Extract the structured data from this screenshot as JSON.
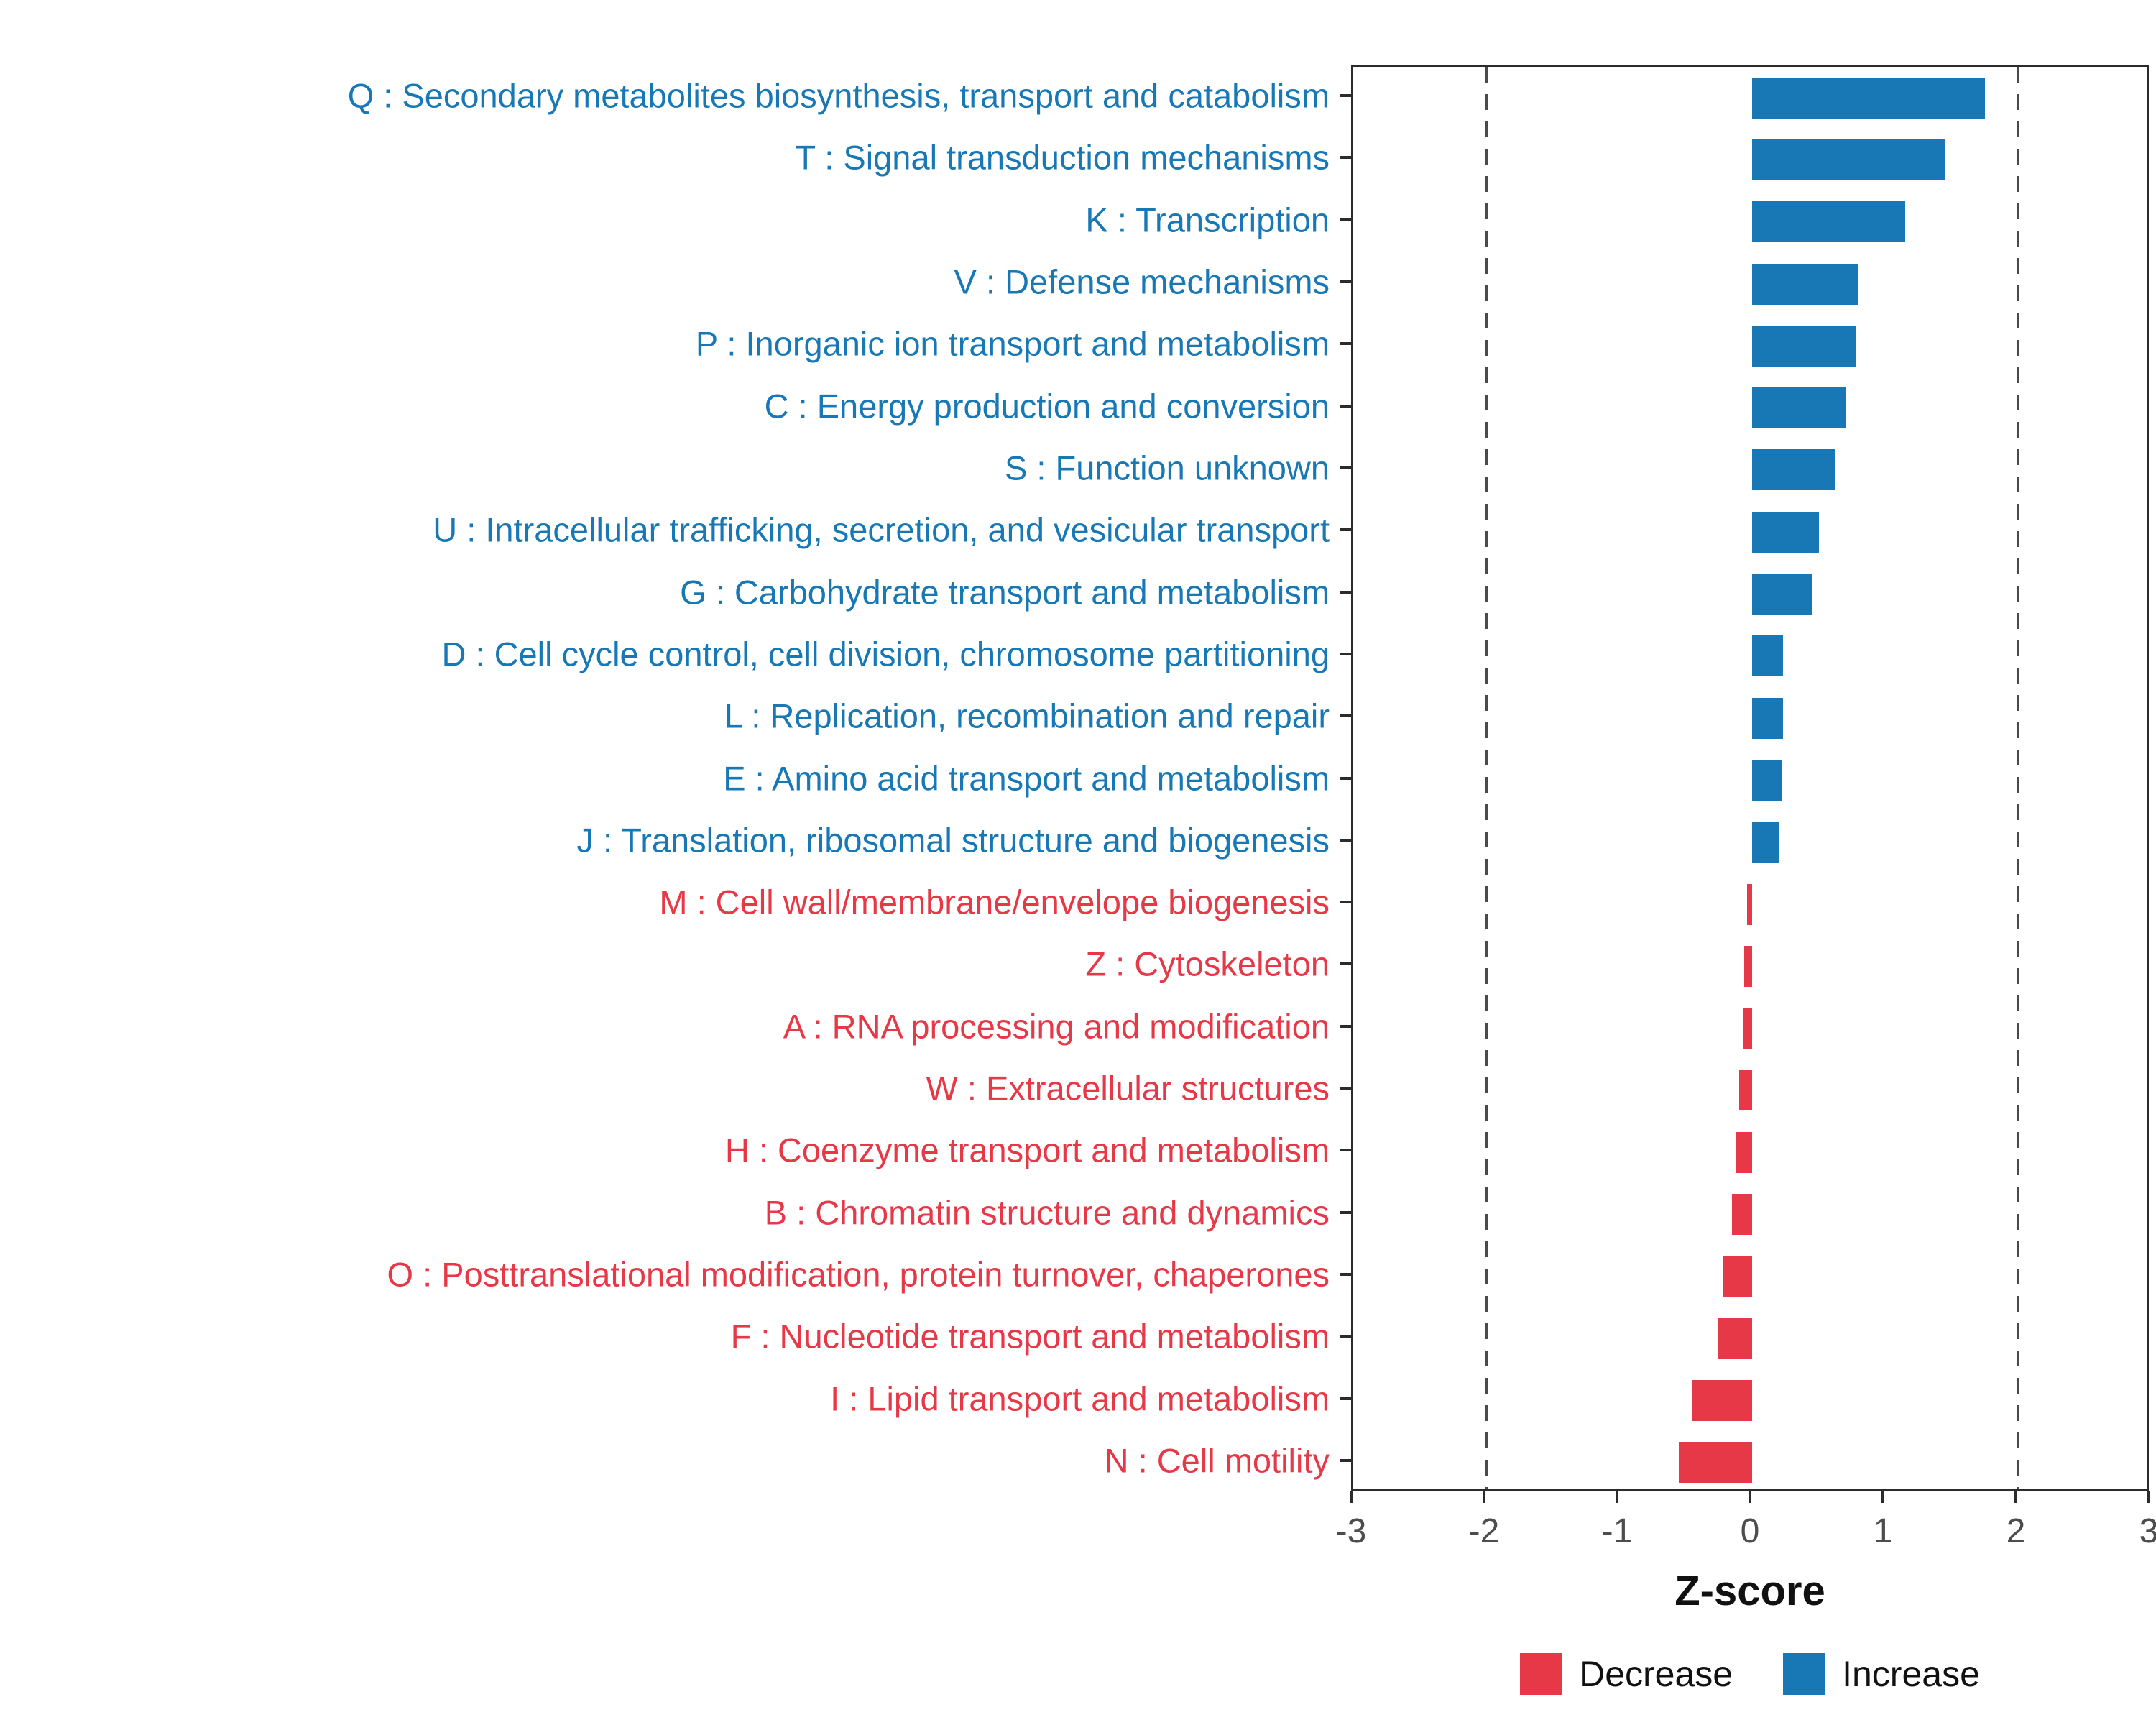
{
  "colors": {
    "increase": "#1778B5",
    "decrease": "#E73847",
    "axis": "#2b2b2b",
    "dashed_line": "#4a4a4a",
    "tick_text": "#4d4d4d"
  },
  "chart_data": {
    "type": "bar",
    "orientation": "horizontal",
    "title": "",
    "xlabel": "Z-score",
    "ylabel": "",
    "xlim": [
      -3,
      3
    ],
    "x_ticks": [
      "-3",
      "-2",
      "-1",
      "0",
      "1",
      "2",
      "3"
    ],
    "x_tick_values": [
      -3,
      -2,
      -1,
      0,
      1,
      2,
      3
    ],
    "dashed_lines": [
      -2,
      2
    ],
    "grid": "off",
    "legend_position": "bottom",
    "legend": [
      {
        "label": "Decrease",
        "color": "#E73847"
      },
      {
        "label": "Increase",
        "color": "#1778B5"
      }
    ],
    "categories": [
      {
        "label": "Q : Secondary metabolites biosynthesis, transport and catabolism",
        "value": 1.75,
        "direction": "Increase"
      },
      {
        "label": "T : Signal transduction mechanisms",
        "value": 1.45,
        "direction": "Increase"
      },
      {
        "label": "K : Transcription",
        "value": 1.15,
        "direction": "Increase"
      },
      {
        "label": "V : Defense mechanisms",
        "value": 0.8,
        "direction": "Increase"
      },
      {
        "label": "P : Inorganic ion transport and metabolism",
        "value": 0.78,
        "direction": "Increase"
      },
      {
        "label": "C : Energy production and conversion",
        "value": 0.7,
        "direction": "Increase"
      },
      {
        "label": "S : Function unknown",
        "value": 0.62,
        "direction": "Increase"
      },
      {
        "label": "U : Intracellular trafficking, secretion, and vesicular transport",
        "value": 0.5,
        "direction": "Increase"
      },
      {
        "label": "G : Carbohydrate transport and metabolism",
        "value": 0.45,
        "direction": "Increase"
      },
      {
        "label": "D : Cell cycle control, cell division, chromosome partitioning",
        "value": 0.23,
        "direction": "Increase"
      },
      {
        "label": "L : Replication, recombination and repair",
        "value": 0.23,
        "direction": "Increase"
      },
      {
        "label": "E : Amino acid transport and metabolism",
        "value": 0.22,
        "direction": "Increase"
      },
      {
        "label": "J : Translation, ribosomal structure and biogenesis",
        "value": 0.2,
        "direction": "Increase"
      },
      {
        "label": "M : Cell wall/membrane/envelope biogenesis",
        "value": -0.04,
        "direction": "Decrease"
      },
      {
        "label": "Z : Cytoskeleton",
        "value": -0.06,
        "direction": "Decrease"
      },
      {
        "label": "A : RNA processing and modification",
        "value": -0.07,
        "direction": "Decrease"
      },
      {
        "label": "W : Extracellular structures",
        "value": -0.1,
        "direction": "Decrease"
      },
      {
        "label": "H : Coenzyme transport and metabolism",
        "value": -0.12,
        "direction": "Decrease"
      },
      {
        "label": "B : Chromatin structure and dynamics",
        "value": -0.15,
        "direction": "Decrease"
      },
      {
        "label": "O : Posttranslational modification, protein turnover, chaperones",
        "value": -0.22,
        "direction": "Decrease"
      },
      {
        "label": "F : Nucleotide transport and metabolism",
        "value": -0.26,
        "direction": "Decrease"
      },
      {
        "label": "I : Lipid transport and metabolism",
        "value": -0.45,
        "direction": "Decrease"
      },
      {
        "label": "N : Cell motility",
        "value": -0.55,
        "direction": "Decrease"
      }
    ]
  }
}
